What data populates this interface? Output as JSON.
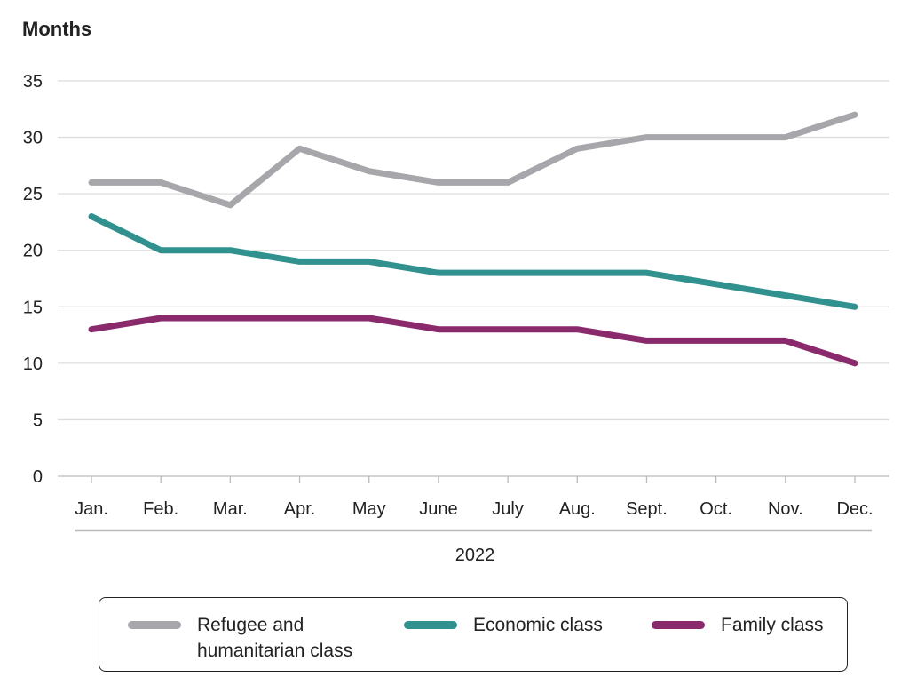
{
  "chart_data": {
    "type": "line",
    "ylabel": "Months",
    "xlabel": "2022",
    "categories": [
      "Jan.",
      "Feb.",
      "Mar.",
      "Apr.",
      "May",
      "June",
      "July",
      "Aug.",
      "Sept.",
      "Oct.",
      "Nov.",
      "Dec."
    ],
    "ylim": [
      0,
      35
    ],
    "yticks": [
      0,
      5,
      10,
      15,
      20,
      25,
      30,
      35
    ],
    "grid": true,
    "legend_position": "bottom",
    "series": [
      {
        "name": "Refugee and humanitarian class",
        "color": "#a7a7ab",
        "values": [
          26,
          26,
          24,
          29,
          27,
          26,
          26,
          29,
          30,
          30,
          30,
          32
        ]
      },
      {
        "name": "Economic class",
        "color": "#31918f",
        "values": [
          23,
          20,
          20,
          19,
          19,
          18,
          18,
          18,
          18,
          17,
          16,
          15
        ]
      },
      {
        "name": "Family class",
        "color": "#8a2a6c",
        "values": [
          13,
          14,
          14,
          14,
          14,
          13,
          13,
          13,
          12,
          12,
          12,
          10
        ]
      }
    ]
  }
}
